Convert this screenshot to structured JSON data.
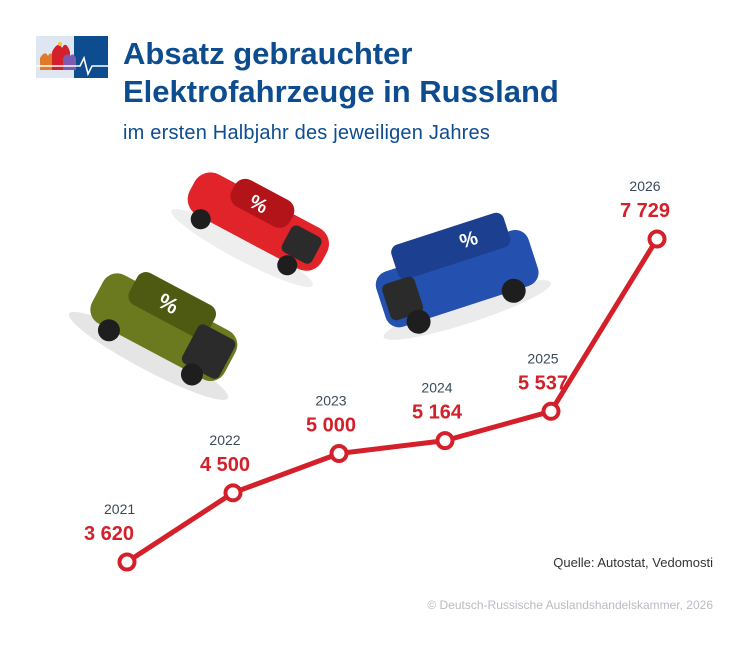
{
  "header": {
    "title_line1": "Absatz gebrauchter",
    "title_line2": "Elektrofahrzeuge in Russland",
    "subtitle": "im ersten Halbjahr des jeweiligen Jahres"
  },
  "cars": {
    "badge_symbol": "%",
    "colors": {
      "green": "#6b7a1e",
      "red": "#e0242a",
      "blue": "#2450b0"
    }
  },
  "colors": {
    "accent": "#d4202a",
    "title_blue": "#0d4d8f",
    "year_gray": "#3b4a5a"
  },
  "chart_data": {
    "type": "line",
    "x": [
      "2021",
      "2022",
      "2023",
      "2024",
      "2025",
      "2026"
    ],
    "values": [
      3620,
      4500,
      5000,
      5164,
      5537,
      7729
    ],
    "value_labels": [
      "3 620",
      "4 500",
      "5 000",
      "5 164",
      "5 537",
      "7 729"
    ],
    "title": "Absatz gebrauchter Elektrofahrzeuge in Russland",
    "subtitle": "im ersten Halbjahr des jeweiligen Jahres",
    "xlabel": "",
    "ylabel": "",
    "grid": false,
    "legend": "none",
    "line_color": "#d4202a"
  },
  "footer": {
    "source": "Quelle: Autostat, Vedomosti",
    "copyright": "© Deutsch-Russische Auslandshandelskammer, 2026"
  }
}
